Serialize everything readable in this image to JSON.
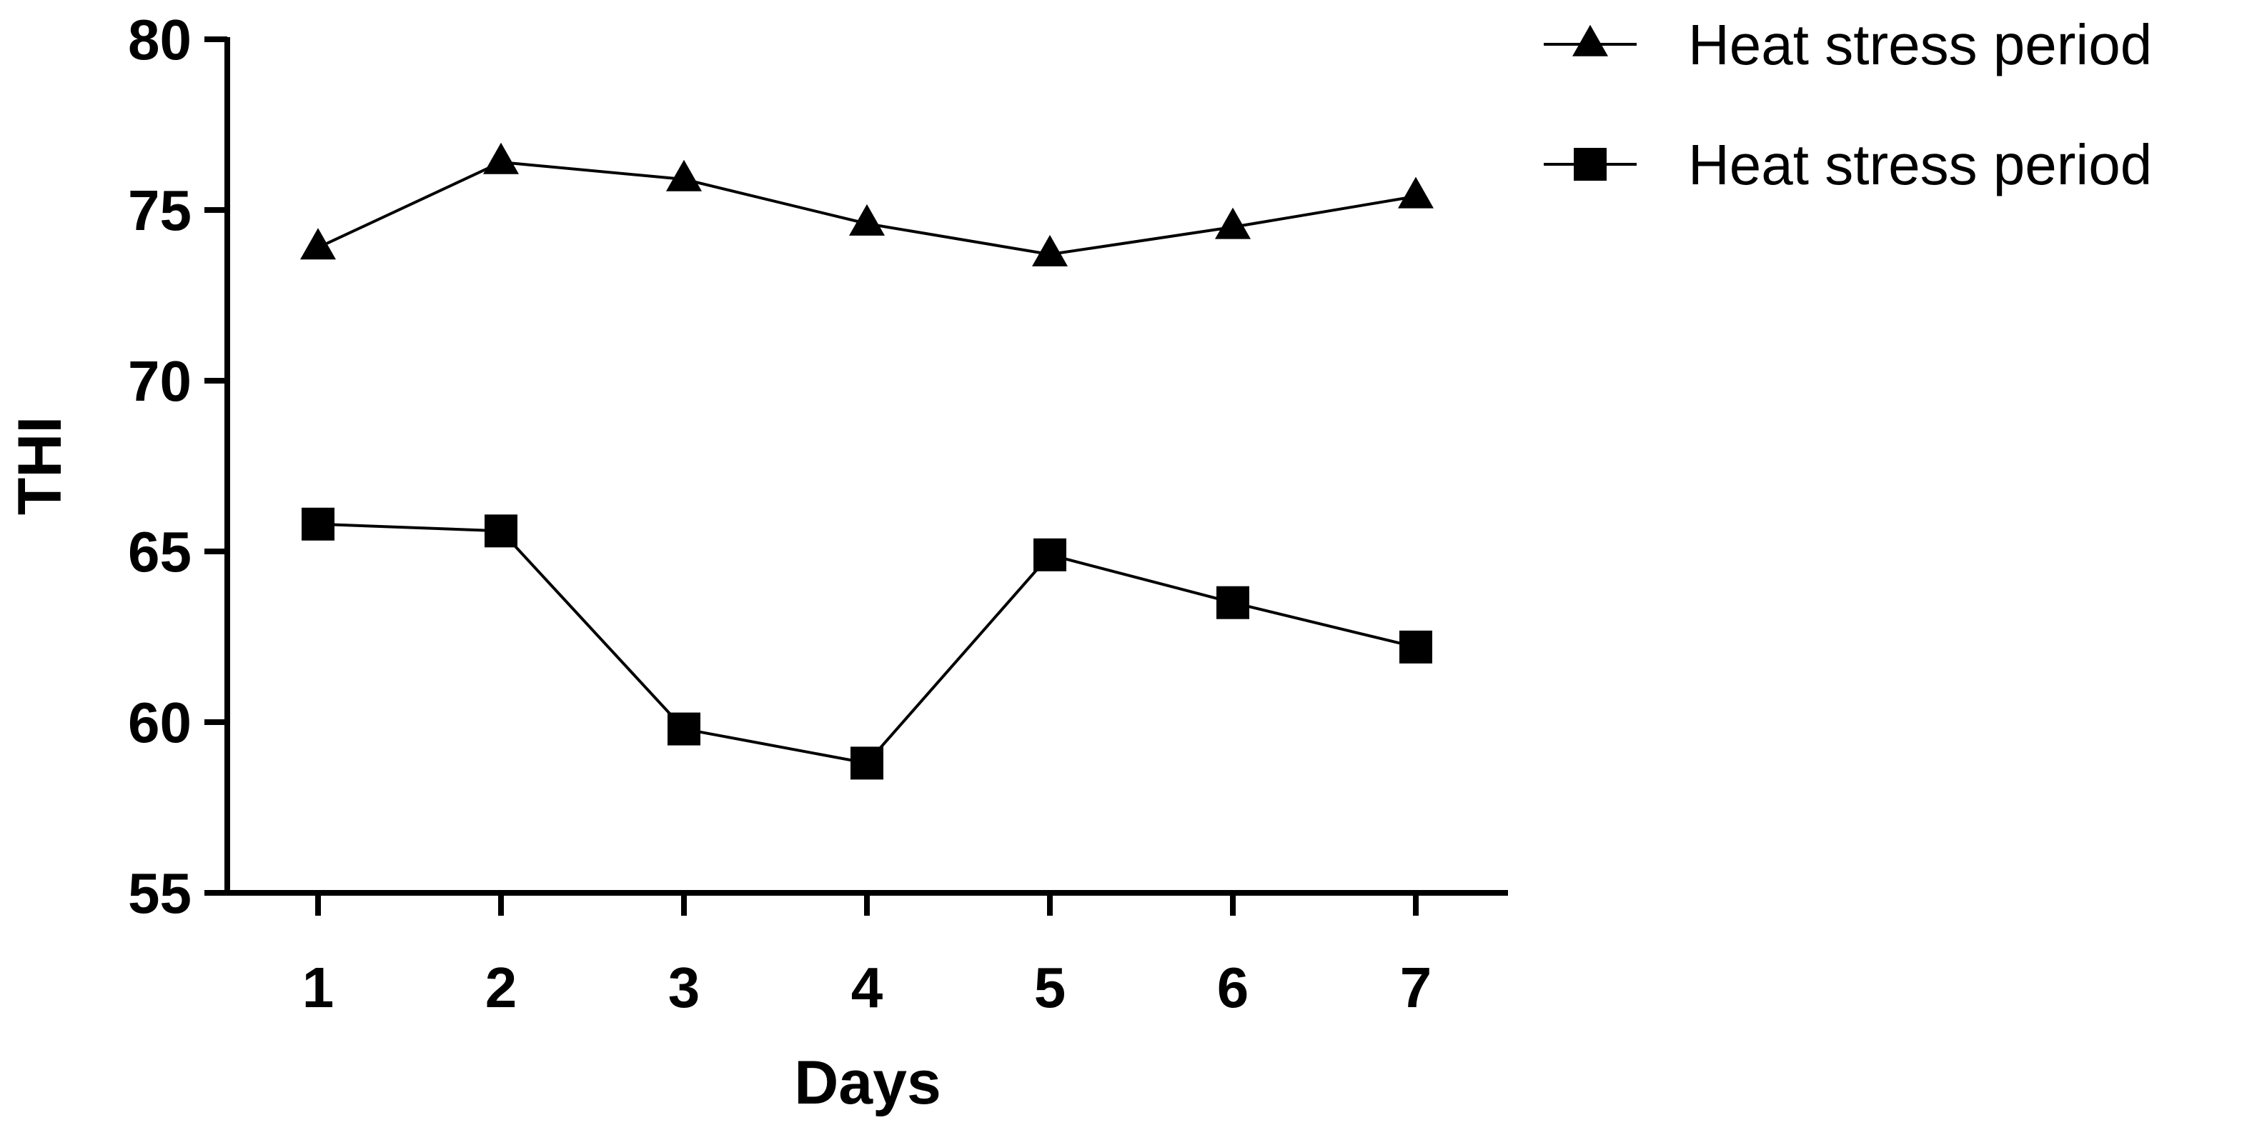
{
  "chart_data": {
    "type": "line",
    "xlabel": "Days",
    "ylabel": "THI",
    "x": [
      1,
      2,
      3,
      4,
      5,
      6,
      7
    ],
    "x_tick_labels": [
      "1",
      "2",
      "3",
      "4",
      "5",
      "6",
      "7"
    ],
    "ylim": [
      55,
      80
    ],
    "y_ticks": [
      55,
      60,
      65,
      70,
      75,
      80
    ],
    "y_tick_labels": [
      "55",
      "60",
      "65",
      "70",
      "75",
      "80"
    ],
    "grid": false,
    "legend_position": "top-right",
    "series": [
      {
        "name": "Heat stress period",
        "marker": "triangle",
        "color": "#000000",
        "values": [
          73.9,
          76.4,
          75.9,
          74.6,
          73.7,
          74.5,
          75.4
        ]
      },
      {
        "name": "Heat stress period",
        "marker": "square",
        "color": "#000000",
        "values": [
          65.8,
          65.6,
          59.8,
          58.8,
          64.9,
          63.5,
          62.2
        ]
      }
    ]
  }
}
